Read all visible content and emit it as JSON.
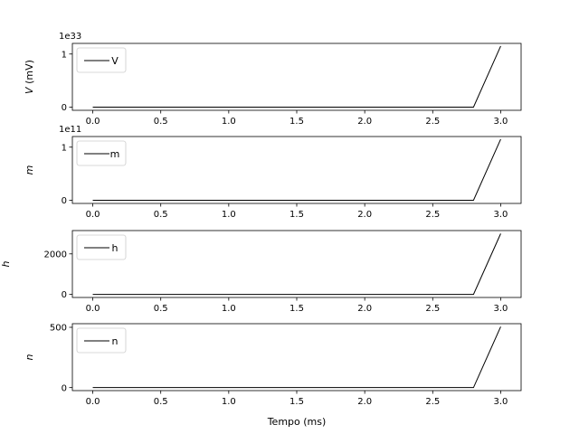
{
  "chart_data": [
    {
      "type": "line",
      "ylabel": "V (mV)",
      "ylabel_italic": "V",
      "ylabel_rest": " (mV)",
      "offset_text": "1e33",
      "legend": "V",
      "legend_position": "upper-left",
      "xlim": [
        -0.15,
        3.15
      ],
      "ylim": [
        -0.06,
        1.2
      ],
      "x_ticks": [
        0.0,
        0.5,
        1.0,
        1.5,
        2.0,
        2.5,
        3.0
      ],
      "x_tick_labels": [
        "0.0",
        "0.5",
        "1.0",
        "1.5",
        "2.0",
        "2.5",
        "3.0"
      ],
      "y_ticks": [
        0,
        1
      ],
      "y_tick_labels": [
        "0",
        "1"
      ],
      "x": [
        0.0,
        2.8,
        3.0
      ],
      "y": [
        0,
        0,
        1.15
      ],
      "grid": false
    },
    {
      "type": "line",
      "ylabel": "m",
      "ylabel_italic": "m",
      "ylabel_rest": "",
      "offset_text": "1e11",
      "legend": "m",
      "legend_position": "upper-left",
      "xlim": [
        -0.15,
        3.15
      ],
      "ylim": [
        -0.06,
        1.2
      ],
      "x_ticks": [
        0.0,
        0.5,
        1.0,
        1.5,
        2.0,
        2.5,
        3.0
      ],
      "x_tick_labels": [
        "0.0",
        "0.5",
        "1.0",
        "1.5",
        "2.0",
        "2.5",
        "3.0"
      ],
      "y_ticks": [
        0,
        1
      ],
      "y_tick_labels": [
        "0",
        "1"
      ],
      "x": [
        0.0,
        2.8,
        3.0
      ],
      "y": [
        0,
        0,
        1.15
      ],
      "grid": false
    },
    {
      "type": "line",
      "ylabel": "h",
      "ylabel_italic": "h",
      "ylabel_rest": "",
      "offset_text": "",
      "legend": "h",
      "legend_position": "upper-left",
      "xlim": [
        -0.15,
        3.15
      ],
      "ylim": [
        -150,
        3150
      ],
      "x_ticks": [
        0.0,
        0.5,
        1.0,
        1.5,
        2.0,
        2.5,
        3.0
      ],
      "x_tick_labels": [
        "0.0",
        "0.5",
        "1.0",
        "1.5",
        "2.0",
        "2.5",
        "3.0"
      ],
      "y_ticks": [
        0,
        2000
      ],
      "y_tick_labels": [
        "0",
        "2000"
      ],
      "x": [
        0.0,
        2.8,
        3.0
      ],
      "y": [
        0,
        0,
        3000
      ],
      "grid": false
    },
    {
      "type": "line",
      "ylabel": "n",
      "ylabel_italic": "n",
      "ylabel_rest": "",
      "offset_text": "",
      "legend": "n",
      "legend_position": "upper-left",
      "xlabel": "Tempo (ms)",
      "xlim": [
        -0.15,
        3.15
      ],
      "ylim": [
        -25,
        530
      ],
      "x_ticks": [
        0.0,
        0.5,
        1.0,
        1.5,
        2.0,
        2.5,
        3.0
      ],
      "x_tick_labels": [
        "0.0",
        "0.5",
        "1.0",
        "1.5",
        "2.0",
        "2.5",
        "3.0"
      ],
      "y_ticks": [
        0,
        500
      ],
      "y_tick_labels": [
        "0",
        "500"
      ],
      "x": [
        0.0,
        2.8,
        3.0
      ],
      "y": [
        0,
        0,
        505
      ],
      "grid": false
    }
  ]
}
